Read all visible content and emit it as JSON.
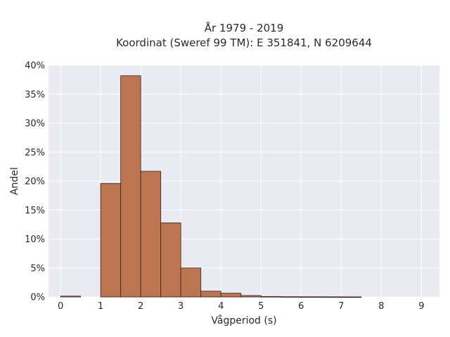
{
  "chart_data": {
    "type": "bar",
    "title_line1": "År 1979 - 2019",
    "title_line2": "Koordinat (Sweref 99 TM): E 351841, N 6209644",
    "xlabel": "Vågperiod (s)",
    "ylabel": "Andel",
    "xlim": [
      -0.3,
      9.45
    ],
    "ylim": [
      0,
      40
    ],
    "x_ticks": [
      "0",
      "1",
      "2",
      "3",
      "4",
      "5",
      "6",
      "7",
      "8",
      "9"
    ],
    "y_ticks": [
      "0%",
      "5%",
      "10%",
      "15%",
      "20%",
      "25%",
      "30%",
      "35%",
      "40%"
    ],
    "bin_width": 0.5,
    "bins": [
      {
        "start": 0.0,
        "value": 0.15
      },
      {
        "start": 0.5,
        "value": 0.0
      },
      {
        "start": 1.0,
        "value": 19.6
      },
      {
        "start": 1.5,
        "value": 38.2
      },
      {
        "start": 2.0,
        "value": 21.7
      },
      {
        "start": 2.5,
        "value": 12.8
      },
      {
        "start": 3.0,
        "value": 5.0
      },
      {
        "start": 3.5,
        "value": 1.0
      },
      {
        "start": 4.0,
        "value": 0.65
      },
      {
        "start": 4.5,
        "value": 0.25
      },
      {
        "start": 5.0,
        "value": 0.08
      },
      {
        "start": 5.5,
        "value": 0.05
      },
      {
        "start": 6.0,
        "value": 0.04
      },
      {
        "start": 6.5,
        "value": 0.03
      },
      {
        "start": 7.0,
        "value": 0.02
      }
    ],
    "grid": true,
    "colors": {
      "bar_fill": "#bb7550",
      "bar_stroke": "#3a2418",
      "plot_bg": "#eaeaf2",
      "grid": "#ffffff"
    }
  }
}
